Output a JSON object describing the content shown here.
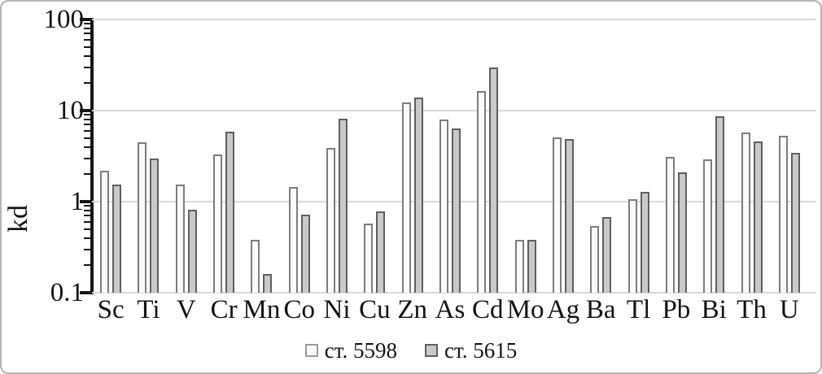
{
  "chart_data": {
    "type": "bar",
    "yscale": "log",
    "title": "",
    "xlabel": "",
    "ylabel": "kd",
    "ylim": [
      0.1,
      100
    ],
    "ytick_labels": [
      "100",
      "10",
      "1",
      "0.1"
    ],
    "ytick_values": [
      100,
      10,
      1,
      0.1
    ],
    "grid": true,
    "legend_position": "bottom",
    "categories": [
      "Sc",
      "Ti",
      "V",
      "Cr",
      "Mn",
      "Co",
      "Ni",
      "Cu",
      "Zn",
      "As",
      "Cd",
      "Mo",
      "Ag",
      "Ba",
      "Tl",
      "Pb",
      "Bi",
      "Th",
      "U"
    ],
    "series": [
      {
        "name": "ст. 5598",
        "fill": "#fbfbfb",
        "border": "#7d7d7d",
        "values": [
          2.2,
          4.5,
          1.55,
          3.3,
          0.38,
          1.45,
          3.9,
          0.57,
          12.3,
          8.0,
          16.5,
          0.38,
          5.1,
          0.54,
          1.07,
          3.1,
          2.9,
          5.8,
          5.3
        ]
      },
      {
        "name": "ст. 5615",
        "fill": "#c9c9c9",
        "border": "#5f5f5f",
        "values": [
          1.55,
          3.0,
          0.82,
          5.9,
          0.16,
          0.72,
          8.2,
          0.78,
          13.8,
          6.4,
          30,
          0.38,
          4.9,
          0.67,
          1.28,
          2.1,
          8.7,
          4.6,
          3.4
        ]
      }
    ]
  },
  "colors": {
    "gridline": "#d9d9d9",
    "axis": "#161616",
    "text": "#141414",
    "frame": "#b5b5b5",
    "background": "#ffffff"
  }
}
